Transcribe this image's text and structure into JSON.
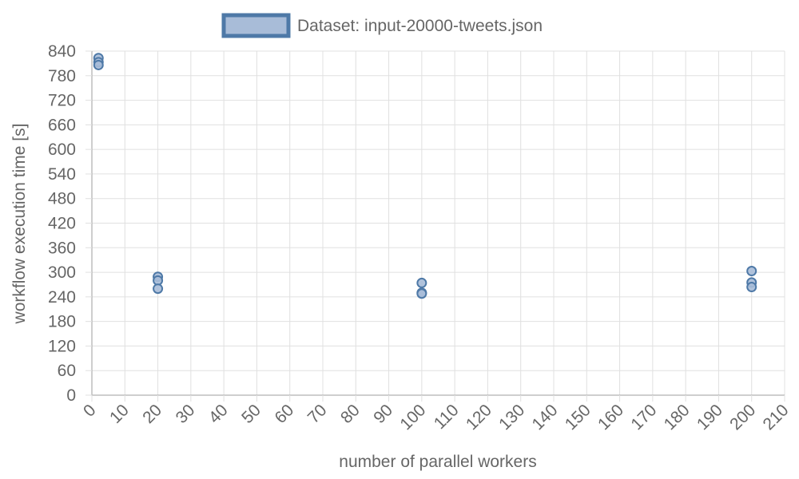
{
  "chart_data": {
    "type": "scatter",
    "legend": {
      "label": "Dataset: input-20000-tweets.json",
      "position": "top-center"
    },
    "xlabel": "number of parallel workers",
    "ylabel": "workflow execution time [s]",
    "xlim": [
      0,
      210
    ],
    "ylim": [
      0,
      840
    ],
    "x_ticks": [
      0,
      10,
      20,
      30,
      40,
      50,
      60,
      70,
      80,
      90,
      100,
      110,
      120,
      130,
      140,
      150,
      160,
      170,
      180,
      190,
      200,
      210
    ],
    "y_ticks": [
      0,
      60,
      120,
      180,
      240,
      300,
      360,
      420,
      480,
      540,
      600,
      660,
      720,
      780,
      840
    ],
    "grid": true,
    "series": [
      {
        "name": "Dataset: input-20000-tweets.json",
        "color": "#4e79a7",
        "fill": "#a8bcd8",
        "points": [
          {
            "x": 2,
            "y": 823
          },
          {
            "x": 2,
            "y": 813
          },
          {
            "x": 2,
            "y": 806
          },
          {
            "x": 20,
            "y": 289
          },
          {
            "x": 20,
            "y": 280
          },
          {
            "x": 20,
            "y": 260
          },
          {
            "x": 100,
            "y": 274
          },
          {
            "x": 100,
            "y": 250
          },
          {
            "x": 100,
            "y": 248
          },
          {
            "x": 200,
            "y": 303
          },
          {
            "x": 200,
            "y": 275
          },
          {
            "x": 200,
            "y": 264
          }
        ]
      }
    ]
  }
}
